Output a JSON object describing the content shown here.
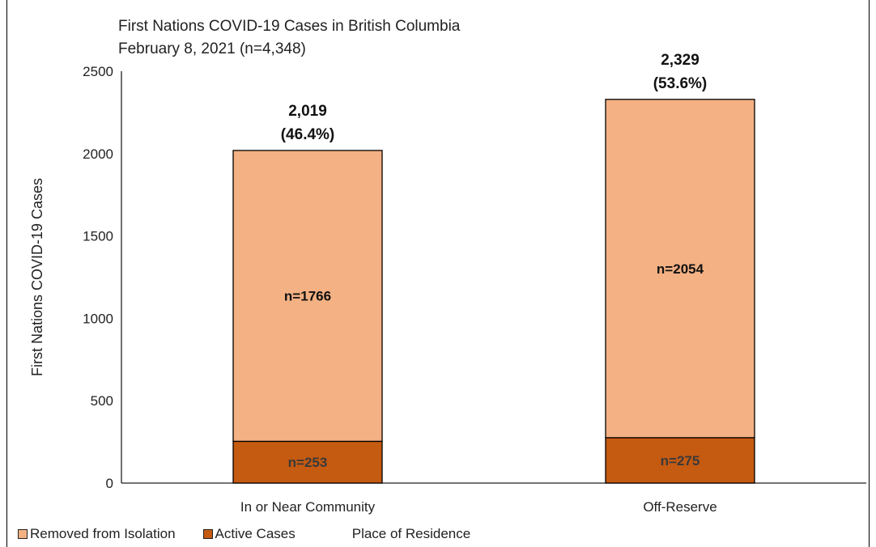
{
  "colors": {
    "removed": "#F4B183",
    "active": "#C55A11",
    "bar_outline": "#000000",
    "inner_label_dark": "#111111",
    "inner_label_on_active": "#3a3a3a"
  },
  "chart_data": {
    "type": "bar",
    "stacked": true,
    "title": "First Nations COVID-19 Cases in British Columbia",
    "subtitle": "February 8, 2021 (n=4,348)",
    "xlabel": "Place of Residence",
    "ylabel": "First Nations COVID-19 Cases",
    "ylim": [
      0,
      2500
    ],
    "yticks": [
      0,
      500,
      1000,
      1500,
      2000,
      2500
    ],
    "grid": false,
    "legend_position": "bottom-left",
    "categories": [
      "In or Near Community",
      "Off-Reserve"
    ],
    "series": [
      {
        "name": "Removed from Isolation",
        "values": [
          1766,
          2054
        ],
        "labels": [
          "n=1766",
          "n=2054"
        ]
      },
      {
        "name": "Active Cases",
        "values": [
          253,
          275
        ],
        "labels": [
          "n=253",
          "n=275"
        ]
      }
    ],
    "totals": [
      {
        "value": "2,019",
        "percent": "(46.4%)"
      },
      {
        "value": "2,329",
        "percent": "(53.6%)"
      }
    ]
  }
}
